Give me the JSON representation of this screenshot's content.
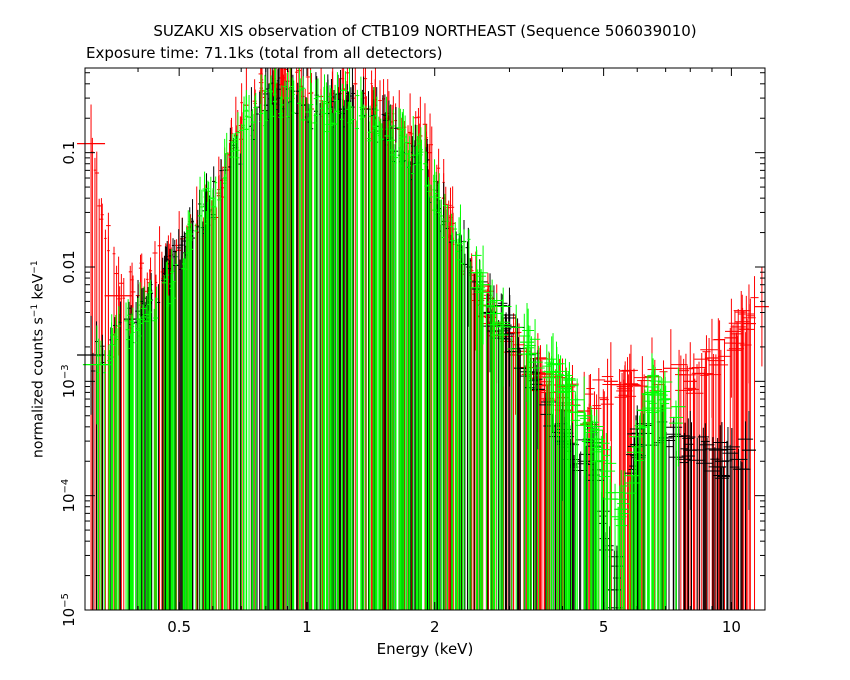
{
  "chart_data": {
    "type": "scatter",
    "title": "SUZAKU XIS observation of CTB109 NORTHEAST (Sequence 506039010)",
    "subtitle": "Exposure time: 71.1ks (total from all detectors)",
    "xlabel": "Energy (keV)",
    "ylabel_main": "normalized counts s",
    "ylabel_mid": " keV",
    "ylabel_sup": "−1",
    "x_scale": "log",
    "y_scale": "log",
    "xlim": [
      0.3,
      12.0
    ],
    "ylim": [
      1e-05,
      0.55
    ],
    "x_ticks": [
      {
        "value": 0.5,
        "label": "0.5"
      },
      {
        "value": 1,
        "label": "1"
      },
      {
        "value": 2,
        "label": "2"
      },
      {
        "value": 5,
        "label": "5"
      },
      {
        "value": 10,
        "label": "10"
      }
    ],
    "y_ticks": [
      {
        "value": 0.1,
        "label": "0.1",
        "sup": ""
      },
      {
        "value": 0.01,
        "label": "0.01",
        "sup": ""
      },
      {
        "value": 0.001,
        "label": "10",
        "sup": "−3"
      },
      {
        "value": 0.0001,
        "label": "10",
        "sup": "−4"
      },
      {
        "value": 1e-05,
        "label": "10",
        "sup": "−5"
      }
    ],
    "series": [
      {
        "color": "#ff0000",
        "points": [
          [
            0.31,
            0.12
          ],
          [
            0.36,
            0.0056
          ],
          [
            0.5,
            0.014
          ],
          [
            0.55,
            0.023
          ],
          [
            0.62,
            0.042
          ],
          [
            0.68,
            0.14
          ],
          [
            0.72,
            0.26
          ],
          [
            0.78,
            0.34
          ],
          [
            0.82,
            0.4
          ],
          [
            0.87,
            0.45
          ],
          [
            0.92,
            0.42
          ],
          [
            0.97,
            0.38
          ],
          [
            1.02,
            0.33
          ],
          [
            1.08,
            0.31
          ],
          [
            1.15,
            0.3
          ],
          [
            1.22,
            0.36
          ],
          [
            1.3,
            0.4
          ],
          [
            1.36,
            0.33
          ],
          [
            1.45,
            0.26
          ],
          [
            1.55,
            0.2
          ],
          [
            1.65,
            0.16
          ],
          [
            1.75,
            0.15
          ],
          [
            1.85,
            0.14
          ],
          [
            1.95,
            0.1
          ],
          [
            2.1,
            0.04
          ],
          [
            2.3,
            0.014
          ],
          [
            2.5,
            0.0062
          ],
          [
            2.8,
            0.0032
          ],
          [
            3.1,
            0.0017
          ],
          [
            3.5,
            0.0012
          ],
          [
            4.0,
            0.00072
          ],
          [
            4.5,
            0.00055
          ],
          [
            5.2,
            0.001
          ],
          [
            5.8,
            0.00095
          ],
          [
            6.5,
            0.0011
          ],
          [
            7.2,
            0.0013
          ],
          [
            8.0,
            0.001
          ],
          [
            9.0,
            0.0016
          ],
          [
            10.0,
            0.0024
          ],
          [
            11.0,
            0.0032
          ],
          [
            11.8,
            0.0045
          ]
        ]
      },
      {
        "color": "#000000",
        "points": [
          [
            0.31,
            0.0017
          ],
          [
            0.4,
            0.0035
          ],
          [
            0.58,
            0.03
          ],
          [
            0.66,
            0.075
          ],
          [
            0.74,
            0.17
          ],
          [
            0.8,
            0.26
          ],
          [
            0.86,
            0.3
          ],
          [
            0.92,
            0.28
          ],
          [
            0.98,
            0.26
          ],
          [
            1.05,
            0.23
          ],
          [
            1.12,
            0.22
          ],
          [
            1.2,
            0.24
          ],
          [
            1.28,
            0.25
          ],
          [
            1.36,
            0.21
          ],
          [
            1.46,
            0.17
          ],
          [
            1.56,
            0.13
          ],
          [
            1.68,
            0.1
          ],
          [
            1.8,
            0.08
          ],
          [
            1.92,
            0.06
          ],
          [
            2.1,
            0.025
          ],
          [
            2.4,
            0.01
          ],
          [
            2.7,
            0.004
          ],
          [
            3.0,
            0.003
          ],
          [
            3.5,
            0.00085
          ],
          [
            4.0,
            0.0003
          ],
          [
            4.8,
            0.0002
          ],
          [
            5.3,
            1.5e-05
          ],
          [
            6.0,
            0.00028
          ],
          [
            7.0,
            0.00032
          ],
          [
            8.0,
            0.00025
          ],
          [
            9.5,
            0.0002
          ],
          [
            11.0,
            0.00025
          ]
        ]
      },
      {
        "color": "#00ff00",
        "points": [
          [
            0.32,
            0.0014
          ],
          [
            0.48,
            0.0065
          ],
          [
            0.56,
            0.028
          ],
          [
            0.64,
            0.06
          ],
          [
            0.72,
            0.16
          ],
          [
            0.78,
            0.22
          ],
          [
            0.84,
            0.28
          ],
          [
            0.9,
            0.3
          ],
          [
            0.96,
            0.27
          ],
          [
            1.02,
            0.24
          ],
          [
            1.1,
            0.22
          ],
          [
            1.18,
            0.23
          ],
          [
            1.26,
            0.25
          ],
          [
            1.34,
            0.21
          ],
          [
            1.44,
            0.17
          ],
          [
            1.54,
            0.14
          ],
          [
            1.66,
            0.11
          ],
          [
            1.78,
            0.095
          ],
          [
            1.9,
            0.08
          ],
          [
            2.05,
            0.03
          ],
          [
            2.3,
            0.016
          ],
          [
            2.6,
            0.007
          ],
          [
            2.9,
            0.003
          ],
          [
            3.3,
            0.0022
          ],
          [
            3.8,
            0.0012
          ],
          [
            4.5,
            0.0005
          ],
          [
            5.5,
            7.6e-05
          ],
          [
            6.5,
            0.0008
          ],
          [
            7.5,
            0.0006
          ]
        ]
      }
    ]
  }
}
